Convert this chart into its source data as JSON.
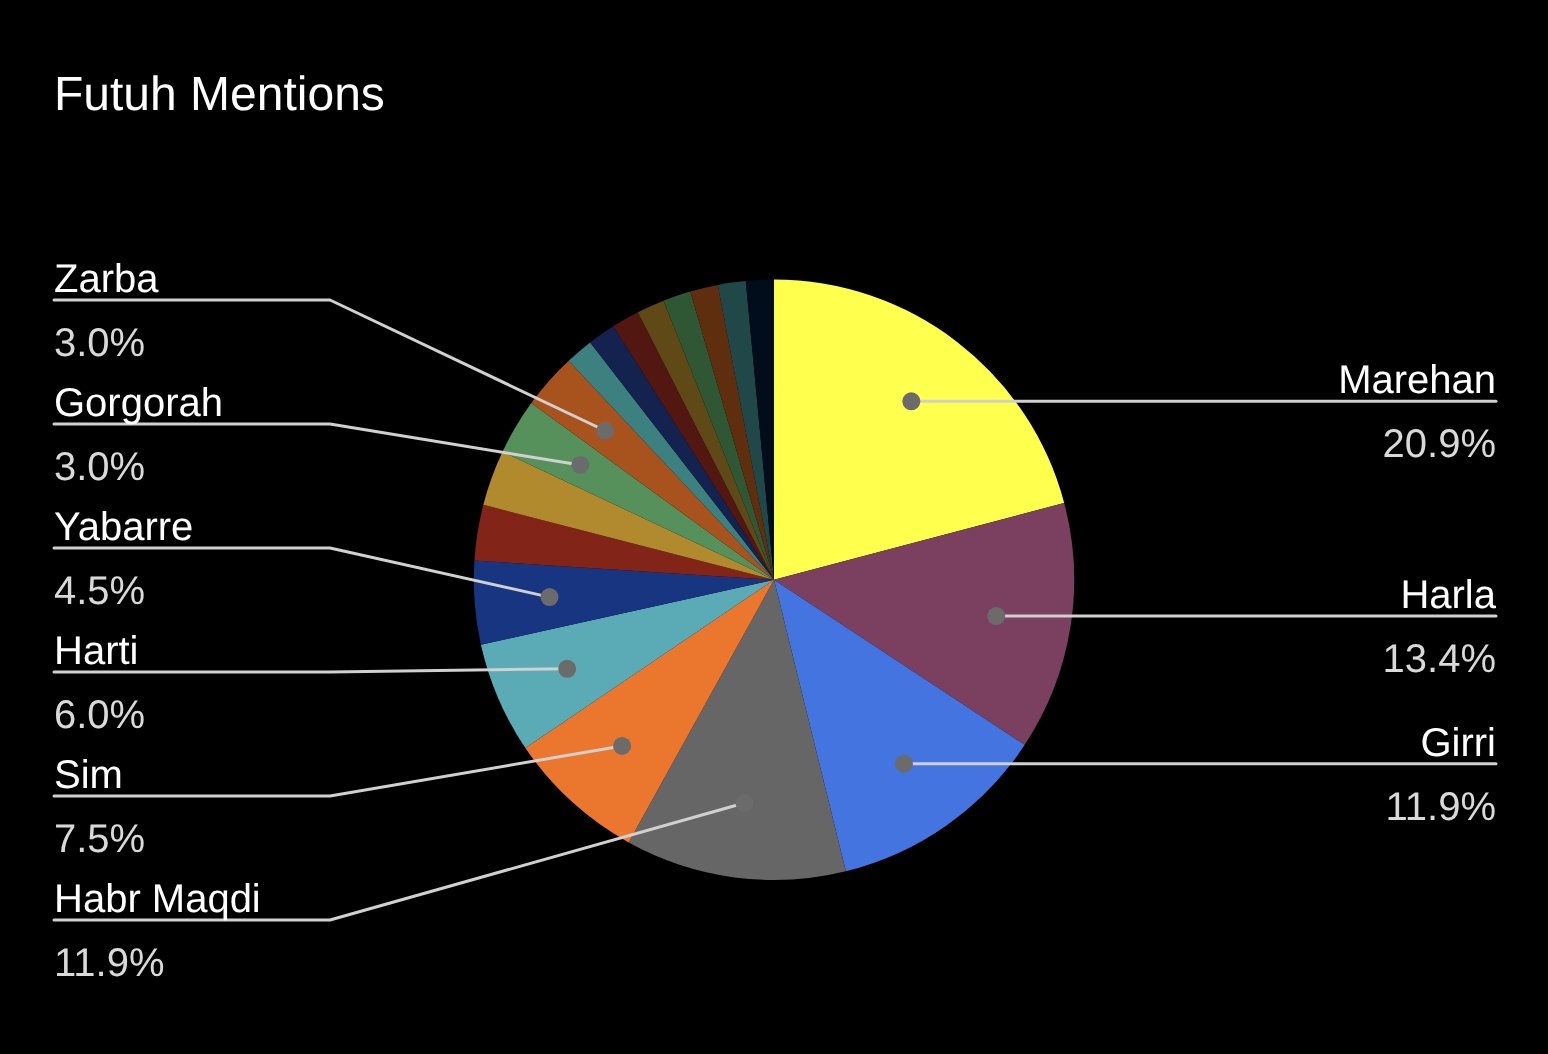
{
  "chart_data": {
    "type": "pie",
    "title": "Futuh Mentions",
    "categories": [
      "Marehan",
      "Harla",
      "Girri",
      "Habr Maqdi",
      "Sim",
      "Harti",
      "Yabarre",
      null,
      null,
      "Gorgorah",
      "Zarba",
      null,
      null,
      null,
      null,
      null,
      null,
      null,
      null
    ],
    "values": [
      20.9,
      13.4,
      11.9,
      11.9,
      7.5,
      6.0,
      4.5,
      3.0,
      3.0,
      3.0,
      3.0,
      1.5,
      1.5,
      1.5,
      1.5,
      1.5,
      1.5,
      1.5,
      1.5
    ],
    "colors": [
      "#ffff4d",
      "#7b3f60",
      "#4374e0",
      "#666666",
      "#eb772f",
      "#5aabb5",
      "#173580",
      "#832419",
      "#b08a2c",
      "#56905a",
      "#a8521e",
      "#3d8080",
      "#13224f",
      "#521710",
      "#5f4a17",
      "#2f5733",
      "#5e2e0f",
      "#214848",
      "#010d1a"
    ],
    "value_labels": [
      "20.9%",
      "13.4%",
      "11.9%",
      "11.9%",
      "7.5%",
      "6.0%",
      "4.5%",
      null,
      null,
      "3.0%",
      "3.0%",
      null,
      null,
      null,
      null,
      null,
      null,
      null,
      null
    ]
  }
}
